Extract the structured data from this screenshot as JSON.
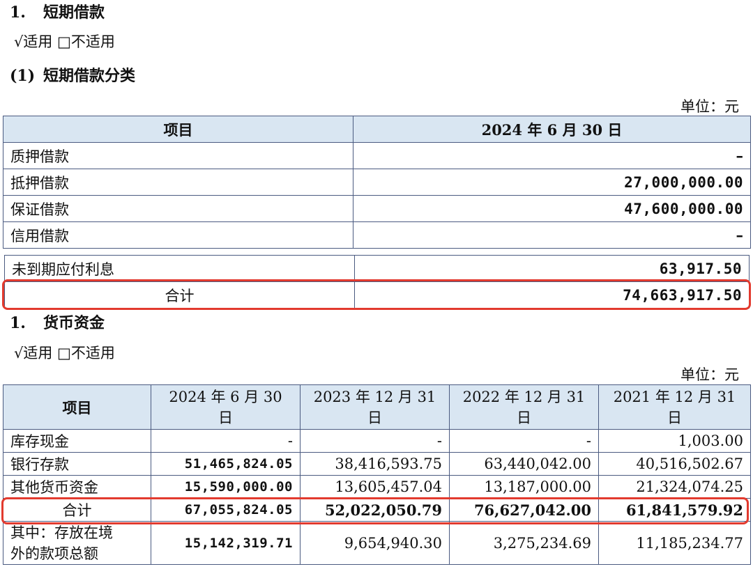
{
  "section1": {
    "number": "1.",
    "title": "短期借款",
    "applicable": "√适用 □不适用",
    "sub_number": "(1)",
    "sub_title": "短期借款分类",
    "unit": "单位：元",
    "headers": [
      "项目",
      "2024 年 6 月 30 日"
    ],
    "rows": [
      {
        "item": "质押借款",
        "value": "–"
      },
      {
        "item": "抵押借款",
        "value": "27,000,000.00"
      },
      {
        "item": "保证借款",
        "value": "47,600,000.00"
      },
      {
        "item": "信用借款",
        "value": "–"
      }
    ],
    "interest_row": {
      "item": "未到期应付利息",
      "value": "63,917.50"
    },
    "total_row": {
      "item": "合计",
      "value": "74,663,917.50"
    }
  },
  "section2": {
    "number": "1.",
    "title": "货币资金",
    "applicable": "√适用 □不适用",
    "unit": "单位：元",
    "headers": {
      "item": "项目",
      "cols": [
        {
          "line1": "2024 年 6 月 30",
          "line2": "日"
        },
        {
          "line1": "2023 年 12 月 31",
          "line2": "日"
        },
        {
          "line1": "2022 年 12 月 31",
          "line2": "日"
        },
        {
          "line1": "2021 年 12 月 31",
          "line2": "日"
        }
      ]
    },
    "rows": [
      {
        "item": "库存现金",
        "values": [
          "-",
          "-",
          "-",
          "1,003.00"
        ]
      },
      {
        "item": "银行存款",
        "values": [
          "51,465,824.05",
          "38,416,593.75",
          "63,440,042.00",
          "40,516,502.67"
        ]
      },
      {
        "item": "其他货币资金",
        "values": [
          "15,590,000.00",
          "13,605,457.04",
          "13,187,000.00",
          "21,324,074.25"
        ]
      },
      {
        "item": "合计",
        "values": [
          "67,055,824.05",
          "52,022,050.79",
          "76,627,042.00",
          "61,841,579.92"
        ]
      },
      {
        "item_line1": "其中：存放在境",
        "item_line2": "外的款项总额",
        "values": [
          "15,142,319.71",
          "9,654,940.30",
          "3,275,234.69",
          "11,185,234.77"
        ]
      }
    ]
  },
  "colors": {
    "header_bg": "#d9e6f2",
    "border": "#4a5a80",
    "highlight": "#e23a2e"
  }
}
